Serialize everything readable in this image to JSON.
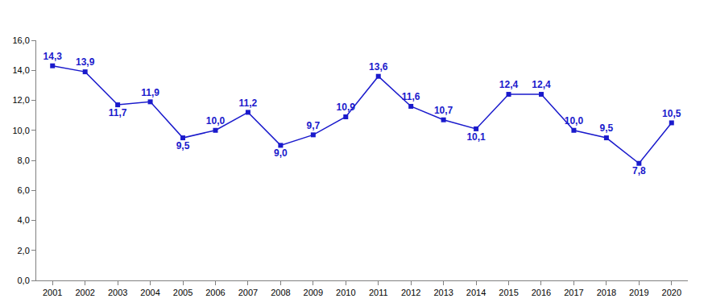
{
  "chart_data": {
    "type": "line",
    "categories": [
      "2001",
      "2002",
      "2003",
      "2004",
      "2005",
      "2006",
      "2007",
      "2008",
      "2009",
      "2010",
      "2011",
      "2012",
      "2013",
      "2014",
      "2015",
      "2016",
      "2017",
      "2018",
      "2019",
      "2020"
    ],
    "values": [
      14.3,
      13.9,
      11.7,
      11.9,
      9.5,
      10.0,
      11.2,
      9.0,
      9.7,
      10.9,
      13.6,
      11.6,
      10.7,
      10.1,
      12.4,
      12.4,
      10.0,
      9.5,
      7.8,
      10.5
    ],
    "value_labels": [
      "14,3",
      "13,9",
      "11,7",
      "11,9",
      "9,5",
      "10,0",
      "11,2",
      "9,0",
      "9,7",
      "10,9",
      "13,6",
      "11,6",
      "10,7",
      "10,1",
      "12,4",
      "12,4",
      "10,0",
      "9,5",
      "7,8",
      "10,5"
    ],
    "color": "#1a1acc",
    "marker": "square",
    "line_style": "solid",
    "data_labels": true,
    "grid": false,
    "ylim": [
      0,
      16
    ],
    "yticks": [
      {
        "value": 0,
        "label": "0,0"
      },
      {
        "value": 2,
        "label": "2,0"
      },
      {
        "value": 4,
        "label": "4,0"
      },
      {
        "value": 6,
        "label": "6,0"
      },
      {
        "value": 8,
        "label": "8,0"
      },
      {
        "value": 10,
        "label": "10,0"
      },
      {
        "value": 12,
        "label": "12,0"
      },
      {
        "value": 14,
        "label": "14,0"
      },
      {
        "value": 16,
        "label": "16,0"
      }
    ]
  }
}
